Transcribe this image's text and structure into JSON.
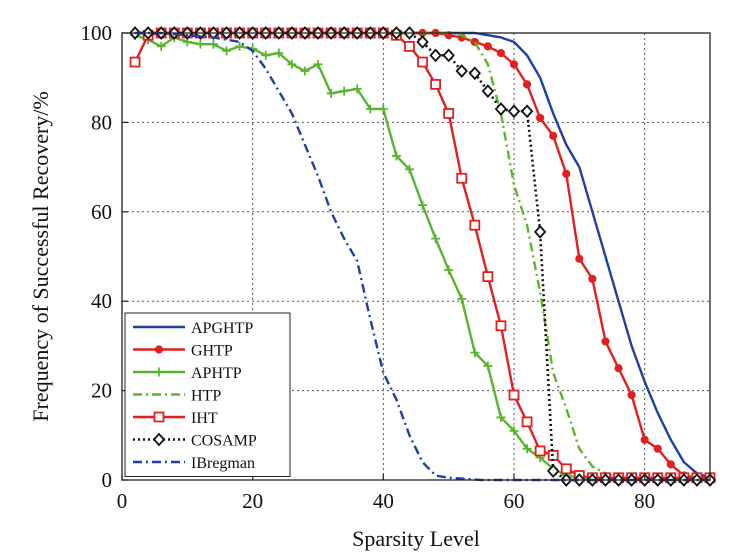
{
  "chart_data": {
    "type": "line",
    "title": "",
    "xlabel": "Sparsity Level",
    "ylabel": "Frequency of Successful Recovery/%",
    "xlim": [
      0,
      90
    ],
    "ylim": [
      0,
      100
    ],
    "xticks": [
      0,
      20,
      40,
      60,
      80
    ],
    "yticks": [
      0,
      20,
      40,
      60,
      80,
      100
    ],
    "grid": true,
    "legend_position": "bottom-left",
    "series": [
      {
        "name": "APGHTP",
        "color": "#1f3fa6",
        "line_style": "solid",
        "marker": "none",
        "x": [
          2,
          10,
          20,
          30,
          40,
          50,
          54,
          56,
          58,
          60,
          62,
          64,
          66,
          68,
          70,
          72,
          74,
          76,
          78,
          80,
          82,
          84,
          86,
          88,
          90
        ],
        "y": [
          100,
          100,
          100,
          100,
          100,
          100,
          100,
          99.5,
          99,
          98,
          95,
          90,
          82,
          75,
          70,
          60,
          50,
          40,
          30,
          22,
          15,
          9,
          4,
          1.5,
          0.5
        ]
      },
      {
        "name": "GHTP",
        "color": "#e32020",
        "line_style": "solid",
        "marker": "circle",
        "x": [
          2,
          4,
          6,
          8,
          10,
          12,
          14,
          16,
          18,
          20,
          22,
          24,
          26,
          28,
          30,
          32,
          34,
          36,
          38,
          40,
          42,
          44,
          46,
          48,
          50,
          52,
          54,
          56,
          58,
          60,
          62,
          64,
          66,
          68,
          70,
          72,
          74,
          76,
          78,
          80,
          82,
          84,
          86,
          88,
          90
        ],
        "y": [
          100,
          100,
          100,
          100,
          100,
          100,
          100,
          100,
          100,
          100,
          100,
          100,
          100,
          100,
          100,
          100,
          100,
          100,
          100,
          100,
          100,
          100,
          100,
          100,
          99.5,
          99,
          98,
          97,
          95.5,
          93,
          88.5,
          81,
          77,
          68.5,
          49.5,
          45,
          31,
          25,
          19,
          9,
          7,
          3.5,
          1,
          0.5,
          0
        ]
      },
      {
        "name": "APHTP",
        "color": "#5ab52e",
        "line_style": "solid",
        "marker": "plus",
        "x": [
          2,
          4,
          6,
          8,
          10,
          12,
          14,
          16,
          18,
          20,
          22,
          24,
          26,
          28,
          30,
          32,
          34,
          36,
          38,
          40,
          42,
          44,
          46,
          48,
          50,
          52,
          54,
          56,
          58,
          60,
          62,
          64,
          66,
          68,
          70,
          72,
          74,
          76,
          78,
          80,
          82,
          84,
          86,
          88,
          90
        ],
        "y": [
          99.5,
          98.5,
          97,
          99,
          98,
          97.5,
          97.5,
          96,
          97,
          96.5,
          95,
          95.5,
          93,
          91.5,
          93,
          86.5,
          87,
          87.5,
          83,
          83,
          72.5,
          69.5,
          61.5,
          54,
          47,
          40.5,
          28.5,
          25.5,
          14,
          11,
          7,
          5,
          2.5,
          1,
          0.5,
          0,
          0,
          0,
          0,
          0,
          0,
          0,
          0,
          0,
          0
        ]
      },
      {
        "name": "HTP",
        "color": "#5ab52e",
        "line_style": "dashdot",
        "marker": "none",
        "x": [
          2,
          10,
          20,
          30,
          40,
          46,
          48,
          50,
          52,
          54,
          56,
          58,
          60,
          62,
          64,
          66,
          68,
          70,
          72,
          74,
          76,
          78,
          80,
          82,
          84,
          86,
          88,
          90
        ],
        "y": [
          100,
          100,
          100,
          100,
          100,
          100,
          100,
          100,
          99.5,
          98,
          93,
          82,
          66,
          57,
          42,
          24,
          16,
          7,
          3,
          1.5,
          0.5,
          0,
          0,
          0,
          0,
          0,
          0,
          0
        ]
      },
      {
        "name": "IHT",
        "color": "#e32020",
        "line_style": "solid",
        "marker": "square",
        "x": [
          2,
          4,
          6,
          8,
          10,
          12,
          14,
          16,
          18,
          20,
          22,
          24,
          26,
          28,
          30,
          32,
          34,
          36,
          38,
          40,
          42,
          44,
          46,
          48,
          50,
          52,
          54,
          56,
          58,
          60,
          62,
          64,
          66,
          68,
          70,
          72,
          74,
          76,
          78,
          80,
          82,
          84,
          86,
          88,
          90
        ],
        "y": [
          93.5,
          99.5,
          100,
          100,
          100,
          100,
          100,
          100,
          100,
          100,
          100,
          100,
          100,
          100,
          100,
          100,
          100,
          100,
          100,
          100,
          99.5,
          97,
          93.5,
          88.5,
          82,
          67.5,
          57,
          45.5,
          34.5,
          19,
          13,
          6.5,
          5.5,
          2.5,
          1,
          0.5,
          0.5,
          0.5,
          0.5,
          0.5,
          0.5,
          0.5,
          0.5,
          0.5,
          0.5
        ]
      },
      {
        "name": "COSAMP",
        "color": "#111111",
        "line_style": "dotted",
        "marker": "diamond",
        "x": [
          2,
          4,
          6,
          8,
          10,
          12,
          14,
          16,
          18,
          20,
          22,
          24,
          26,
          28,
          30,
          32,
          34,
          36,
          38,
          40,
          42,
          44,
          46,
          48,
          50,
          52,
          54,
          56,
          58,
          60,
          62,
          64,
          66,
          68,
          70,
          72,
          74,
          76,
          78,
          80,
          82,
          84,
          86,
          88,
          90
        ],
        "y": [
          100,
          100,
          100,
          100,
          100,
          100,
          100,
          100,
          100,
          100,
          100,
          100,
          100,
          100,
          100,
          100,
          100,
          100,
          100,
          100,
          100,
          100,
          98,
          95,
          95,
          91.5,
          91,
          87,
          83,
          82.5,
          82.5,
          55.5,
          2,
          0,
          0,
          0,
          0,
          0,
          0,
          0,
          0,
          0,
          0,
          0,
          0
        ]
      },
      {
        "name": "IBregman",
        "color": "#1f3fa6",
        "line_style": "dashdot",
        "marker": "none",
        "x": [
          2,
          6,
          10,
          14,
          18,
          20,
          22,
          24,
          26,
          28,
          30,
          32,
          34,
          36,
          38,
          40,
          42,
          44,
          46,
          48,
          50,
          55,
          60,
          70,
          80,
          90
        ],
        "y": [
          100,
          100,
          99.5,
          99,
          98,
          96,
          92,
          87,
          82,
          75,
          68,
          60,
          54,
          49,
          36,
          24,
          18,
          10,
          4,
          1,
          0.5,
          0,
          0,
          0,
          0,
          0
        ]
      }
    ]
  }
}
